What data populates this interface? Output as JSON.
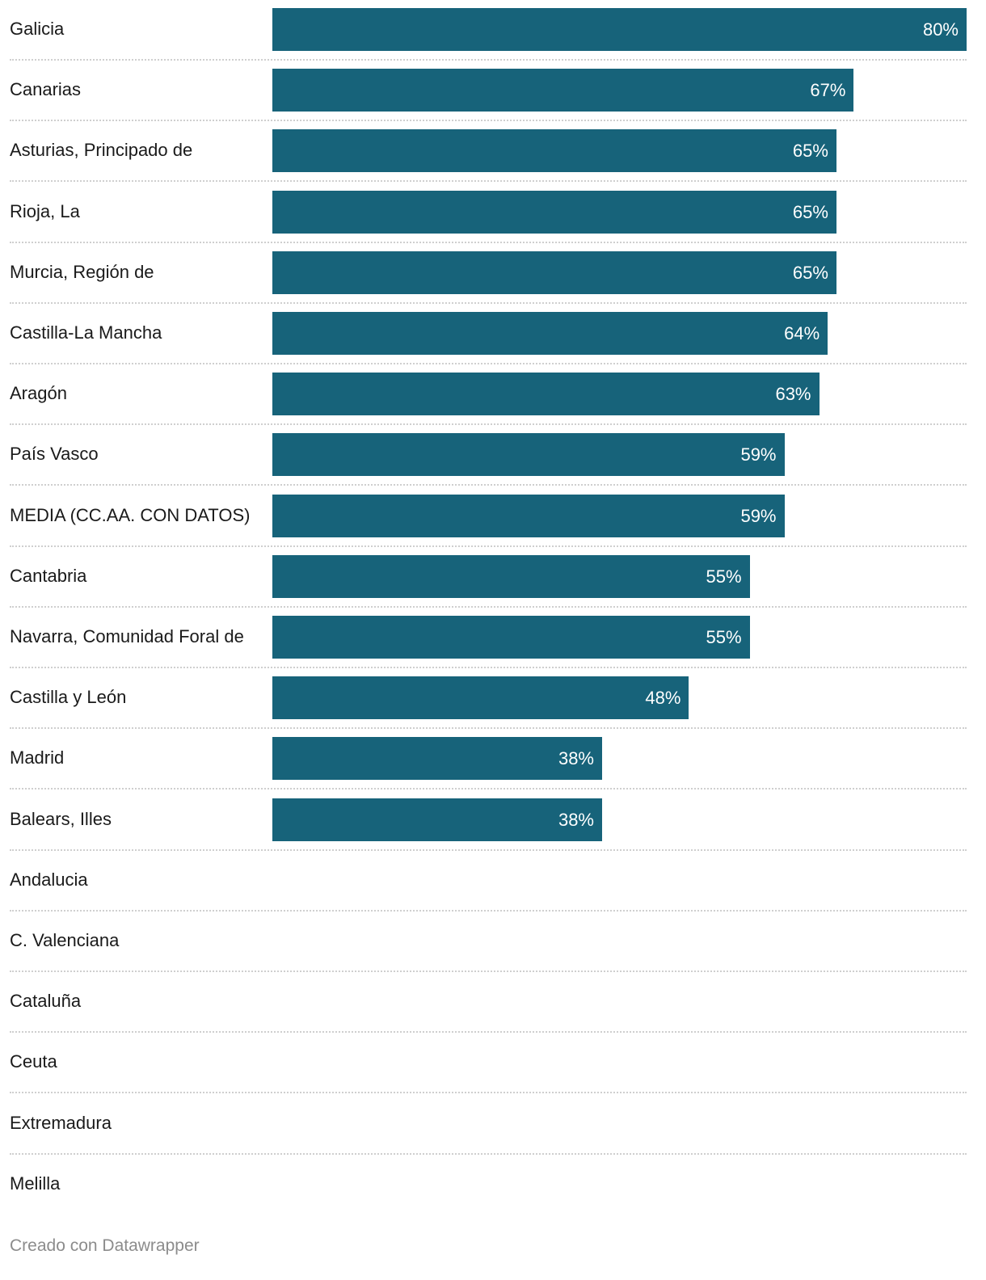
{
  "chart_data": {
    "type": "bar",
    "orientation": "horizontal",
    "categories": [
      "Galicia",
      "Canarias",
      "Asturias, Principado de",
      "Rioja, La",
      "Murcia, Región de",
      "Castilla-La Mancha",
      "Aragón",
      "País Vasco",
      "MEDIA (CC.AA. CON DATOS)",
      "Cantabria",
      "Navarra, Comunidad Foral de",
      "Castilla y León",
      "Madrid",
      "Balears, Illes",
      "Andalucia",
      "C. Valenciana",
      "Cataluña",
      "Ceuta",
      "Extremadura",
      "Melilla"
    ],
    "values": [
      80,
      67,
      65,
      65,
      65,
      64,
      63,
      59,
      59,
      55,
      55,
      48,
      38,
      38,
      null,
      null,
      null,
      null,
      null,
      null
    ],
    "value_labels": [
      "80%",
      "67%",
      "65%",
      "65%",
      "65%",
      "64%",
      "63%",
      "59%",
      "59%",
      "55%",
      "55%",
      "48%",
      "38%",
      "38%",
      "",
      "",
      "",
      "",
      "",
      ""
    ],
    "xlim": [
      0,
      80
    ],
    "unit": "%",
    "bar_color": "#17637a",
    "title": "",
    "xlabel": "",
    "ylabel": ""
  },
  "credit": "Creado con Datawrapper"
}
